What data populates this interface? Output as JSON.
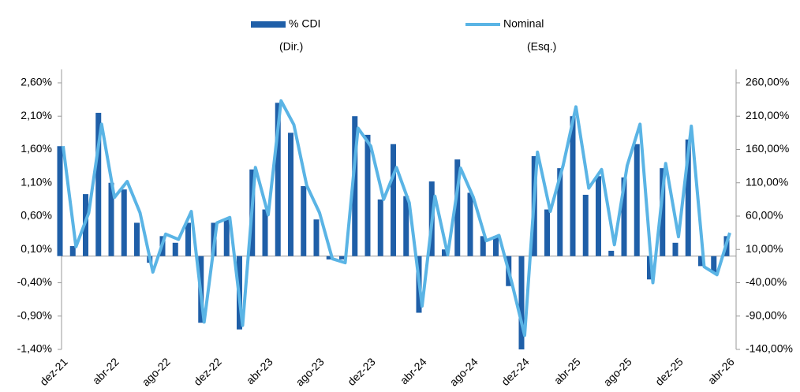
{
  "chart_data": {
    "type": "bar-line",
    "categories": [
      "dez-21",
      null,
      null,
      null,
      "abr-22",
      null,
      null,
      null,
      "ago-22",
      null,
      null,
      null,
      "dez-22",
      null,
      null,
      null,
      "abr-23",
      null,
      null,
      null,
      "ago-23",
      null,
      null,
      null,
      "dez-23",
      null,
      null,
      null,
      "abr-24",
      null,
      null,
      null,
      "ago-24",
      null,
      null,
      null,
      "dez-24",
      null,
      null,
      null,
      "abr-25",
      null,
      null,
      null,
      "ago-25",
      null,
      null,
      null,
      "dez-25",
      null,
      null,
      null,
      "abr-26"
    ],
    "series": [
      {
        "name": "% CDI",
        "axis_label": "(Dir.)",
        "type": "bar",
        "axis": "y2",
        "color": "#1f5fa8",
        "values": [
          165,
          15,
          93,
          215,
          110,
          100,
          50,
          -10,
          30,
          20,
          50,
          -100,
          50,
          55,
          -110,
          130,
          70,
          230,
          185,
          105,
          55,
          -5,
          -5,
          210,
          182,
          85,
          168,
          90,
          -85,
          112,
          10,
          145,
          95,
          30,
          30,
          -45,
          -140,
          150,
          70,
          132,
          210,
          92,
          120,
          8,
          118,
          168,
          -35,
          132,
          20,
          175,
          -15,
          -25,
          30
        ]
      },
      {
        "name": "Nominal",
        "axis_label": "(Esq.)",
        "type": "line",
        "color": "#5ab4e5",
        "values": [
          1.65,
          0.14,
          0.65,
          1.98,
          0.88,
          1.12,
          0.65,
          -0.24,
          0.33,
          0.25,
          0.67,
          -0.99,
          0.5,
          0.58,
          -1.04,
          1.33,
          0.62,
          2.33,
          1.97,
          1.06,
          0.65,
          -0.04,
          -0.1,
          1.92,
          1.65,
          0.85,
          1.33,
          0.8,
          -0.75,
          0.9,
          0.02,
          1.32,
          0.88,
          0.23,
          0.31,
          -0.4,
          -1.19,
          1.56,
          0.67,
          1.36,
          2.24,
          1.02,
          1.3,
          0.17,
          1.36,
          1.98,
          -0.4,
          1.39,
          0.29,
          1.95,
          -0.16,
          -0.28,
          0.35
        ]
      }
    ],
    "ylim": [
      -1.4,
      2.6
    ],
    "yticks": [
      {
        "value": -1.4,
        "label": "-1,40%"
      },
      {
        "value": -0.9,
        "label": "-0,90%"
      },
      {
        "value": -0.4,
        "label": "-0,40%"
      },
      {
        "value": 0.1,
        "label": "0,10%"
      },
      {
        "value": 0.6,
        "label": "0,60%"
      },
      {
        "value": 1.1,
        "label": "1,10%"
      },
      {
        "value": 1.6,
        "label": "1,60%"
      },
      {
        "value": 2.1,
        "label": "2,10%"
      },
      {
        "value": 2.6,
        "label": "2,60%"
      }
    ],
    "y2lim": [
      -140,
      260
    ],
    "y2ticks": [
      {
        "value": -140,
        "label": "-140,00%"
      },
      {
        "value": -90,
        "label": "-90,00%"
      },
      {
        "value": -40,
        "label": "-40,00%"
      },
      {
        "value": 10,
        "label": "10,00%"
      },
      {
        "value": 60,
        "label": "60,00%"
      },
      {
        "value": 110,
        "label": "110,00%"
      },
      {
        "value": 160,
        "label": "160,00%"
      },
      {
        "value": 210,
        "label": "210,00%"
      },
      {
        "value": 260,
        "label": "260,00%"
      }
    ],
    "grid": false
  }
}
